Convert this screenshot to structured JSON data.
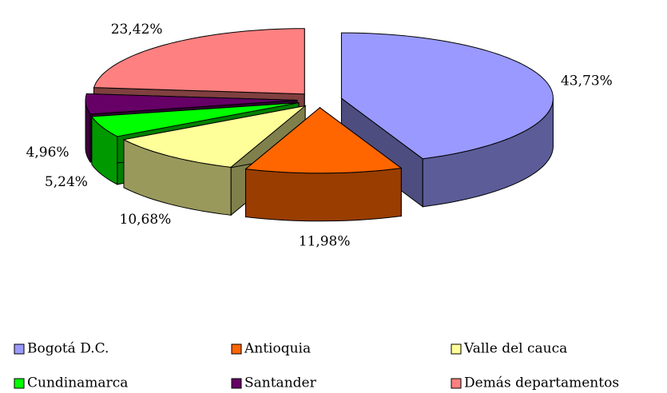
{
  "chart_data": {
    "type": "pie",
    "categories": [
      "Bogotá D.C.",
      "Antioquia",
      "Valle del cauca",
      "Cundinamarca",
      "Santander",
      "Demás departamentos"
    ],
    "values": [
      43.73,
      11.98,
      10.68,
      5.24,
      4.96,
      23.42
    ],
    "value_labels": [
      "43,73%",
      "11,98%",
      "10,68%",
      "5,24%",
      "4,96%",
      "23,42%"
    ],
    "colors": [
      "#9999ff",
      "#ff6600",
      "#ffff99",
      "#00ff00",
      "#660066",
      "#ff8080"
    ],
    "legend": "bottom"
  }
}
